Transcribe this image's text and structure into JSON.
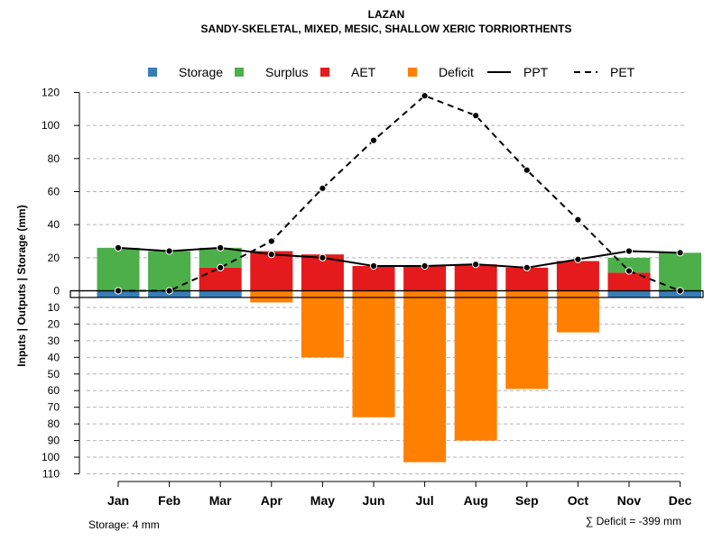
{
  "chart_data": {
    "type": "bar",
    "title": "LAZAN",
    "subtitle": "SANDY-SKELETAL, MIXED, MESIC, SHALLOW XERIC TORRIORTHENTS",
    "ylabel": "Inputs | Outputs | Storage    (mm)",
    "categories": [
      "Jan",
      "Feb",
      "Mar",
      "Apr",
      "May",
      "Jun",
      "Jul",
      "Aug",
      "Sep",
      "Oct",
      "Nov",
      "Dec"
    ],
    "y_up_range": [
      0,
      120
    ],
    "y_up_ticks": [
      0,
      20,
      40,
      60,
      80,
      100,
      120
    ],
    "y_down_range": [
      0,
      110
    ],
    "y_down_ticks": [
      10,
      20,
      30,
      40,
      50,
      60,
      70,
      80,
      90,
      100,
      110
    ],
    "grid": true,
    "legend": {
      "position": "top",
      "items": [
        {
          "label": "Storage",
          "type": "square",
          "color": "#377EB8"
        },
        {
          "label": "Surplus",
          "type": "square",
          "color": "#4DAF4A"
        },
        {
          "label": "AET",
          "type": "square",
          "color": "#E41A1C"
        },
        {
          "label": "Deficit",
          "type": "square",
          "color": "#FF7F00"
        },
        {
          "label": "PPT",
          "type": "line",
          "color": "#000000"
        },
        {
          "label": "PET",
          "type": "dashed",
          "color": "#000000"
        }
      ]
    },
    "series": [
      {
        "name": "AET",
        "color": "#E41A1C",
        "values": [
          0,
          0,
          14,
          24,
          22,
          15,
          15,
          16,
          14,
          18,
          11,
          0
        ]
      },
      {
        "name": "Surplus",
        "color": "#4DAF4A",
        "values": [
          26,
          24,
          12,
          0,
          0,
          0,
          0,
          0,
          0,
          0,
          9,
          23
        ]
      },
      {
        "name": "Storage",
        "color": "#377EB8",
        "values": [
          4,
          4,
          4,
          0,
          0,
          0,
          0,
          0,
          0,
          0,
          4,
          4
        ]
      },
      {
        "name": "Deficit",
        "color": "#FF7F00",
        "values": [
          0,
          0,
          0,
          7,
          40,
          76,
          103,
          90,
          59,
          25,
          0,
          0
        ]
      },
      {
        "name": "PPT",
        "color": "#000000",
        "values": [
          26,
          24,
          26,
          22,
          20,
          15,
          15,
          16,
          14,
          19,
          24,
          23
        ]
      },
      {
        "name": "PET",
        "color": "#000000",
        "values": [
          0,
          0,
          14,
          30,
          62,
          91,
          118,
          106,
          73,
          43,
          12,
          0
        ]
      }
    ],
    "footer_left": "Storage: 4 mm",
    "footer_right": "∑ Deficit = -399 mm"
  }
}
